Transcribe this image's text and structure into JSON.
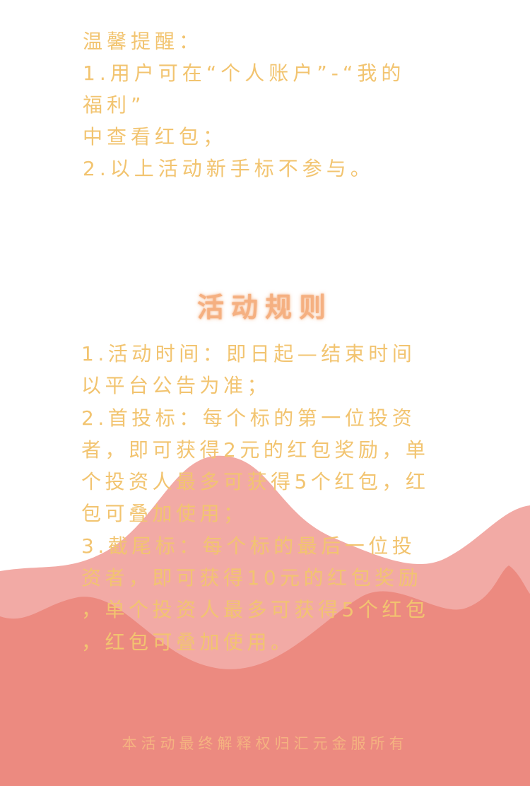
{
  "notice": {
    "lines": [
      "温馨提醒：",
      "1.用户可在“个人账户”-“我的",
      "福利”",
      "中查看红包；",
      "2.以上活动新手标不参与。"
    ]
  },
  "rules": {
    "title": "活动规则",
    "lines": [
      "1.活动时间：即日起—结束时间",
      "以平台公告为准；",
      "2.首投标：每个标的第一位投资",
      "者，即可获得2元的红包奖励，单",
      "个投资人最多可获得5个红包，红",
      "包可叠加使用；",
      "3.截尾标：每个标的最后一位投",
      "资者，即可获得10元的红包奖励",
      "，单个投资人最多可获得5个红包",
      "，红包可叠加使用。"
    ]
  },
  "footer": {
    "text": "本活动最终解释权归汇元金服所有"
  },
  "colors": {
    "text_gold": "#f2c470",
    "title_orange": "#f5b081",
    "wave_light": "#f2aaa5",
    "wave_dark": "#ec8a80"
  }
}
